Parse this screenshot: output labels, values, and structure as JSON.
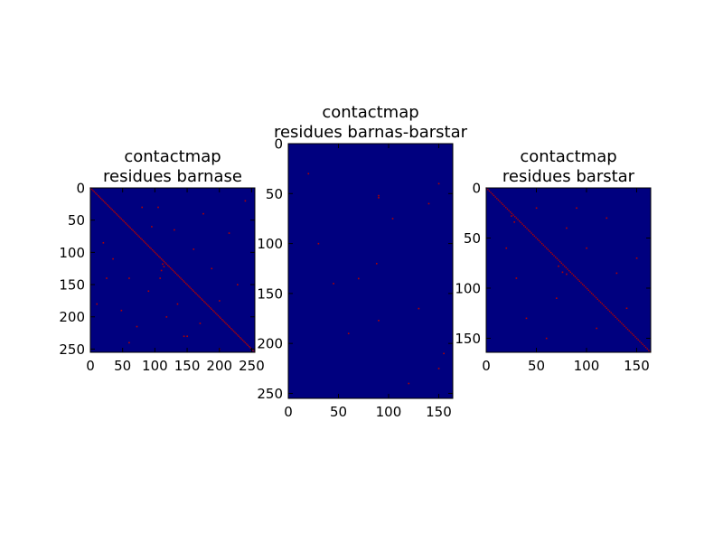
{
  "chart_data": [
    {
      "type": "heatmap",
      "title_lines": [
        "contactmap",
        "residues barnase"
      ],
      "rows": 255,
      "cols": 255,
      "xlim": [
        0,
        255
      ],
      "ylim": [
        255,
        0
      ],
      "x_ticks": [
        0,
        50,
        100,
        150,
        200,
        250
      ],
      "y_ticks": [
        0,
        50,
        100,
        150,
        200,
        250
      ],
      "background_color": "#00007f",
      "contact_color": "#b30000",
      "diagonal": true,
      "diagonal_residues": [
        [
          0,
          255
        ]
      ],
      "contacts_residue_pairs": [
        [
          20,
          85
        ],
        [
          35,
          110
        ],
        [
          48,
          190
        ],
        [
          60,
          140
        ],
        [
          72,
          215
        ],
        [
          90,
          160
        ],
        [
          105,
          30
        ],
        [
          118,
          200
        ],
        [
          130,
          65
        ],
        [
          145,
          230
        ],
        [
          160,
          95
        ],
        [
          175,
          40
        ],
        [
          188,
          125
        ],
        [
          200,
          175
        ],
        [
          215,
          70
        ],
        [
          228,
          150
        ],
        [
          240,
          20
        ],
        [
          112,
          118
        ],
        [
          110,
          128
        ],
        [
          108,
          140
        ],
        [
          114,
          122
        ],
        [
          150,
          230
        ],
        [
          60,
          240
        ],
        [
          10,
          180
        ],
        [
          200,
          250
        ],
        [
          80,
          30
        ],
        [
          170,
          210
        ],
        [
          25,
          140
        ],
        [
          135,
          180
        ],
        [
          95,
          60
        ]
      ]
    },
    {
      "type": "heatmap",
      "title_lines": [
        "contactmap",
        "residues barnas-barstar"
      ],
      "rows": 255,
      "cols": 164,
      "xlim": [
        0,
        164
      ],
      "ylim": [
        255,
        0
      ],
      "x_ticks": [
        0,
        50,
        100,
        150
      ],
      "y_ticks": [
        0,
        50,
        100,
        150,
        200,
        250
      ],
      "background_color": "#00007f",
      "contact_color": "#b30000",
      "diagonal": false,
      "contacts_residue_pairs": [
        [
          90,
          54
        ],
        [
          90,
          52
        ],
        [
          88,
          120
        ],
        [
          104,
          75
        ],
        [
          30,
          100
        ],
        [
          140,
          60
        ],
        [
          150,
          225
        ],
        [
          90,
          177
        ],
        [
          130,
          165
        ],
        [
          45,
          140
        ],
        [
          60,
          190
        ],
        [
          120,
          240
        ],
        [
          20,
          30
        ],
        [
          155,
          210
        ],
        [
          70,
          135
        ],
        [
          150,
          40
        ]
      ]
    },
    {
      "type": "heatmap",
      "title_lines": [
        "contactmap",
        "residues barstar"
      ],
      "rows": 164,
      "cols": 164,
      "xlim": [
        0,
        164
      ],
      "ylim": [
        164,
        0
      ],
      "x_ticks": [
        0,
        50,
        100,
        150
      ],
      "y_ticks": [
        0,
        50,
        100,
        150
      ],
      "background_color": "#00007f",
      "contact_color": "#b30000",
      "diagonal": true,
      "contacts_residue_pairs": [
        [
          30,
          90
        ],
        [
          40,
          130
        ],
        [
          50,
          20
        ],
        [
          60,
          150
        ],
        [
          70,
          110
        ],
        [
          80,
          40
        ],
        [
          100,
          60
        ],
        [
          110,
          140
        ],
        [
          120,
          30
        ],
        [
          130,
          85
        ],
        [
          140,
          120
        ],
        [
          150,
          70
        ],
        [
          20,
          60
        ],
        [
          90,
          20
        ],
        [
          25,
          28
        ],
        [
          28,
          34
        ],
        [
          72,
          78
        ],
        [
          76,
          84
        ],
        [
          80,
          86
        ]
      ]
    }
  ]
}
